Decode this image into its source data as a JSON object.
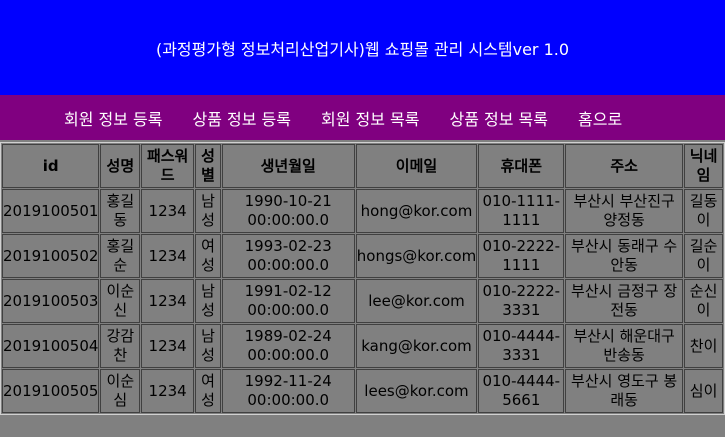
{
  "header": {
    "title": "(과정평가형 정보처리산업기사)웹 쇼핑몰 관리 시스템ver 1.0"
  },
  "nav": [
    {
      "label": "회원 정보 등록"
    },
    {
      "label": "상품 정보 등록"
    },
    {
      "label": "회원 정보 목록"
    },
    {
      "label": "상품 정보 목록"
    },
    {
      "label": "홈으로"
    }
  ],
  "colors": {
    "header_bg": "#0000ff",
    "nav_bg": "#800080",
    "body_bg": "#808080"
  },
  "table": {
    "columns": [
      "id",
      "성명",
      "패스워드",
      "성별",
      "생년월일",
      "이메일",
      "휴대폰",
      "주소",
      "닉네임"
    ],
    "rows": [
      {
        "id": "2019100501",
        "name": "홍길동",
        "pw": "1234",
        "sex": "남성",
        "birth": "1990-10-21 00:00:00.0",
        "email": "hong@kor.com",
        "phone": "010-1111-1111",
        "addr": "부산시 부산진구 양정동",
        "nick": "길동이"
      },
      {
        "id": "2019100502",
        "name": "홍길순",
        "pw": "1234",
        "sex": "여성",
        "birth": "1993-02-23 00:00:00.0",
        "email": "hongs@kor.com",
        "phone": "010-2222-1111",
        "addr": "부산시 동래구 수안동",
        "nick": "길순이"
      },
      {
        "id": "2019100503",
        "name": "이순신",
        "pw": "1234",
        "sex": "남성",
        "birth": "1991-02-12 00:00:00.0",
        "email": "lee@kor.com",
        "phone": "010-2222-3331",
        "addr": "부산시 금정구 장전동",
        "nick": "순신이"
      },
      {
        "id": "2019100504",
        "name": "강감찬",
        "pw": "1234",
        "sex": "남성",
        "birth": "1989-02-24 00:00:00.0",
        "email": "kang@kor.com",
        "phone": "010-4444-3331",
        "addr": "부산시 해운대구 반송동",
        "nick": "찬이"
      },
      {
        "id": "2019100505",
        "name": "이순심",
        "pw": "1234",
        "sex": "여성",
        "birth": "1992-11-24 00:00:00.0",
        "email": "lees@kor.com",
        "phone": "010-4444-5661",
        "addr": "부산시 영도구 봉래동",
        "nick": "심이"
      }
    ]
  }
}
